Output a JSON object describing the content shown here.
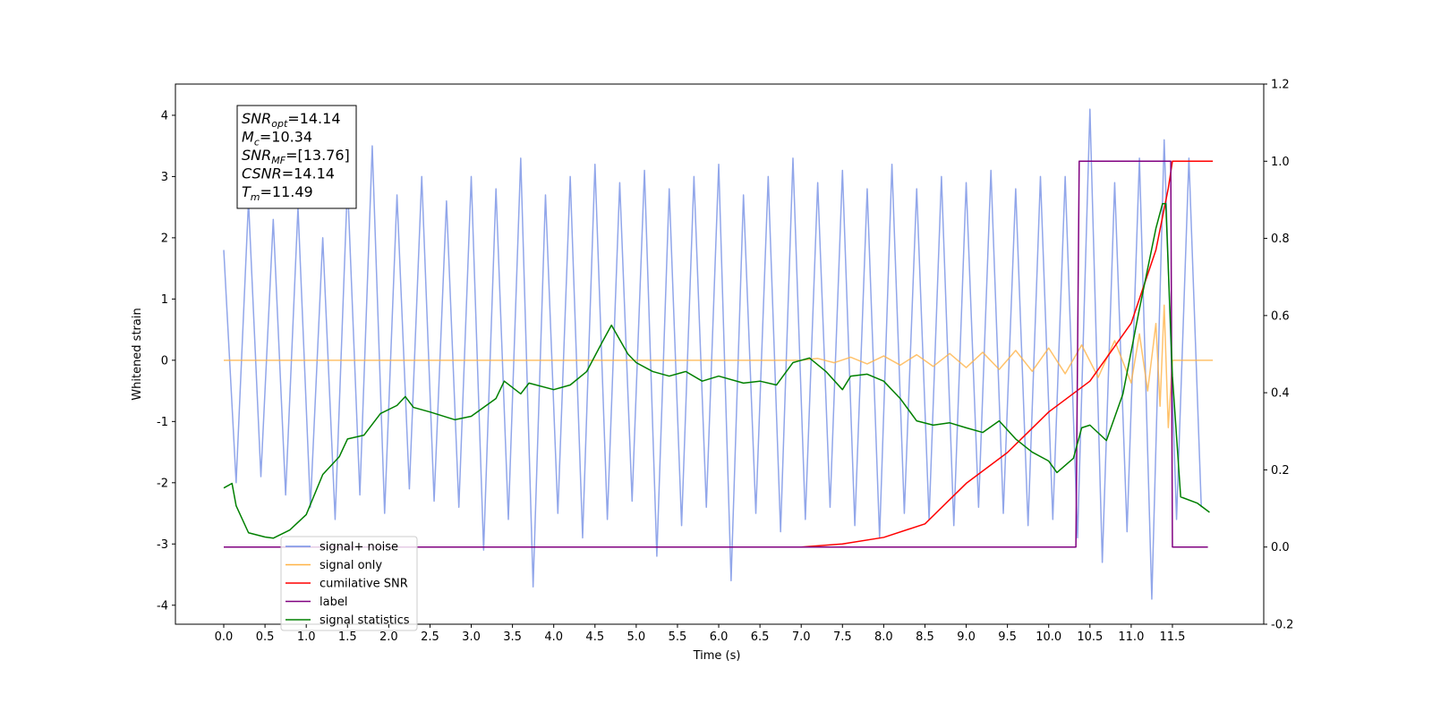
{
  "chart_data": {
    "type": "line",
    "xlabel": "Time (s)",
    "ylabel": "Whitened strain",
    "xlim": [
      -0.586,
      12.607
    ],
    "ylim": [
      -4.31,
      4.51
    ],
    "y2lim": [
      -0.2,
      1.2
    ],
    "xticks": [
      {
        "value": 0,
        "label": "0.0"
      },
      0.5,
      {
        "value": 1,
        "label": "1.0"
      },
      1.5,
      {
        "value": 2,
        "label": "2.0"
      },
      2.5,
      {
        "value": 3,
        "label": "3.0"
      },
      3.5,
      {
        "value": 4,
        "label": "4.0"
      },
      4.5,
      {
        "value": 5,
        "label": "5.0"
      },
      5.5,
      {
        "value": 6,
        "label": "6.0"
      },
      6.5,
      {
        "value": 7,
        "label": "7.0"
      },
      7.5,
      {
        "value": 8,
        "label": "8.0"
      },
      8.5,
      {
        "value": 9,
        "label": "9.0"
      },
      9.5,
      {
        "value": 10,
        "label": "10.0"
      },
      10.5,
      {
        "value": 11,
        "label": "11.0"
      },
      11.5
    ],
    "yticks": [
      -4,
      -3,
      -2,
      -1,
      0,
      1,
      2,
      3,
      4
    ],
    "y2ticks": [
      -0.2,
      {
        "value": 0,
        "label": "0.0"
      },
      0.2,
      0.4,
      0.6,
      0.8,
      {
        "value": 1,
        "label": "1.0"
      },
      1.2
    ],
    "annotation": [
      {
        "main": "SNR",
        "sub": "opt",
        "text": "=14.14"
      },
      {
        "main": "M",
        "sub": "c",
        "text": "=10.34"
      },
      {
        "main": "SNR",
        "sub": "MF",
        "text": "=[13.76]"
      },
      {
        "main": "CSNR",
        "text": "=14.14"
      },
      {
        "main": "T",
        "sub": "m",
        "text": "=11.49"
      }
    ],
    "legend_loc": "lower left",
    "series": [
      {
        "name": "signal+ noise",
        "color": "#7590e5",
        "x": [
          0,
          0.15,
          0.3,
          0.45,
          0.6,
          0.75,
          0.9,
          1.05,
          1.2,
          1.35,
          1.5,
          1.65,
          1.8,
          1.95,
          2.1,
          2.25,
          2.4,
          2.55,
          2.7,
          2.85,
          3.0,
          3.15,
          3.3,
          3.45,
          3.6,
          3.75,
          3.9,
          4.05,
          4.2,
          4.35,
          4.5,
          4.65,
          4.8,
          4.95,
          5.1,
          5.25,
          5.4,
          5.55,
          5.7,
          5.85,
          6.0,
          6.15,
          6.3,
          6.45,
          6.6,
          6.75,
          6.9,
          7.05,
          7.2,
          7.35,
          7.5,
          7.65,
          7.8,
          7.95,
          8.1,
          8.25,
          8.4,
          8.55,
          8.7,
          8.85,
          9.0,
          9.15,
          9.3,
          9.45,
          9.6,
          9.75,
          9.9,
          10.05,
          10.2,
          10.35,
          10.5,
          10.65,
          10.8,
          10.95,
          11.1,
          11.25,
          11.4,
          11.55,
          11.7,
          11.85
        ],
        "values": [
          1.8,
          -2.0,
          2.6,
          -1.9,
          2.3,
          -2.2,
          2.5,
          -2.4,
          2.0,
          -2.6,
          2.9,
          -2.2,
          3.5,
          -2.5,
          2.7,
          -2.1,
          3.0,
          -2.3,
          2.6,
          -2.4,
          3.0,
          -3.1,
          2.8,
          -2.6,
          3.3,
          -3.7,
          2.7,
          -2.5,
          3.0,
          -2.9,
          3.2,
          -2.6,
          2.9,
          -2.3,
          3.1,
          -3.2,
          2.8,
          -2.7,
          3.0,
          -2.4,
          3.2,
          -3.6,
          2.7,
          -2.5,
          3.0,
          -2.8,
          3.3,
          -2.6,
          2.9,
          -2.4,
          3.1,
          -2.7,
          2.8,
          -2.9,
          3.2,
          -2.5,
          2.8,
          -2.6,
          3.0,
          -2.7,
          2.9,
          -2.4,
          3.1,
          -2.5,
          2.8,
          -2.7,
          3.0,
          -2.6,
          3.0,
          -2.9,
          4.1,
          -3.3,
          2.9,
          -2.8,
          3.3,
          -3.9,
          3.6,
          -2.6,
          3.3,
          -2.4
        ]
      },
      {
        "name": "signal only",
        "color": "#ffb347",
        "x": [
          0,
          7.0,
          7.2,
          7.4,
          7.6,
          7.8,
          8.0,
          8.2,
          8.4,
          8.6,
          8.8,
          9.0,
          9.2,
          9.4,
          9.6,
          9.8,
          10.0,
          10.2,
          10.4,
          10.6,
          10.8,
          11.0,
          11.1,
          11.2,
          11.3,
          11.35,
          11.4,
          11.45,
          11.5,
          11.99
        ],
        "values": [
          0,
          0,
          0.03,
          -0.04,
          0.05,
          -0.06,
          0.07,
          -0.08,
          0.09,
          -0.1,
          0.11,
          -0.12,
          0.13,
          -0.15,
          0.16,
          -0.18,
          0.2,
          -0.22,
          0.25,
          -0.28,
          0.32,
          -0.37,
          0.43,
          -0.5,
          0.6,
          -0.75,
          0.9,
          -1.1,
          0,
          0
        ]
      },
      {
        "name": "cumilative SNR",
        "color": "#ff0000",
        "axis": "y2",
        "x": [
          0,
          7.0,
          7.5,
          8.0,
          8.5,
          9.0,
          9.5,
          10.0,
          10.5,
          11.0,
          11.3,
          11.45,
          11.5,
          11.99
        ],
        "values": [
          0,
          0,
          0.008,
          0.025,
          0.06,
          0.165,
          0.245,
          0.35,
          0.43,
          0.58,
          0.77,
          0.93,
          1.0,
          1.0
        ]
      },
      {
        "name": "label",
        "color": "#800080",
        "axis": "y2",
        "x": [
          0,
          10.33,
          10.37,
          11.48,
          11.5,
          11.93
        ],
        "values": [
          0,
          0,
          1,
          1,
          0,
          0
        ]
      },
      {
        "name": "signal statistics",
        "color": "#008000",
        "axis": "y2",
        "x": [
          0,
          0.1,
          0.15,
          0.3,
          0.5,
          0.6,
          0.8,
          1.0,
          1.2,
          1.4,
          1.5,
          1.7,
          1.9,
          2.1,
          2.2,
          2.3,
          2.5,
          2.8,
          3.0,
          3.3,
          3.4,
          3.6,
          3.7,
          4.0,
          4.2,
          4.4,
          4.6,
          4.7,
          4.9,
          5.0,
          5.2,
          5.4,
          5.6,
          5.8,
          6.0,
          6.3,
          6.5,
          6.7,
          6.9,
          7.1,
          7.3,
          7.5,
          7.6,
          7.8,
          8.0,
          8.2,
          8.4,
          8.6,
          8.8,
          9.0,
          9.2,
          9.4,
          9.6,
          9.8,
          10.0,
          10.1,
          10.3,
          10.4,
          10.5,
          10.7,
          10.9,
          11.1,
          11.3,
          11.38,
          11.42,
          11.5,
          11.6,
          11.8,
          11.95
        ],
        "values": [
          0.153,
          0.165,
          0.107,
          0.037,
          0.026,
          0.023,
          0.044,
          0.084,
          0.188,
          0.234,
          0.28,
          0.29,
          0.346,
          0.367,
          0.39,
          0.362,
          0.35,
          0.33,
          0.339,
          0.385,
          0.43,
          0.397,
          0.425,
          0.408,
          0.42,
          0.455,
          0.536,
          0.575,
          0.5,
          0.478,
          0.455,
          0.443,
          0.455,
          0.43,
          0.443,
          0.425,
          0.43,
          0.42,
          0.478,
          0.49,
          0.455,
          0.408,
          0.443,
          0.448,
          0.43,
          0.385,
          0.327,
          0.316,
          0.322,
          0.309,
          0.297,
          0.327,
          0.28,
          0.246,
          0.223,
          0.193,
          0.23,
          0.309,
          0.316,
          0.276,
          0.397,
          0.617,
          0.826,
          0.89,
          0.89,
          0.443,
          0.13,
          0.114,
          0.09
        ]
      }
    ]
  }
}
